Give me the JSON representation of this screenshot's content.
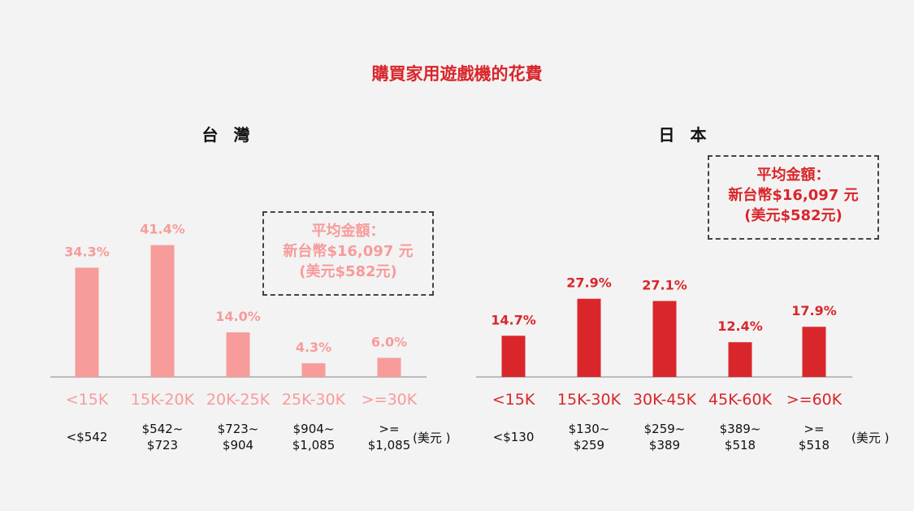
{
  "title": "購買家用遊戲機的花費",
  "usd_unit": "(美元 )",
  "colors": {
    "taiwan": "#f79b9b",
    "japan": "#d9262b",
    "title": "#d9262b"
  },
  "chart_data": [
    {
      "type": "bar",
      "title": "台 灣",
      "categories": [
        "<15K",
        "15K-20K",
        "20K-25K",
        "25K-30K",
        ">=30K"
      ],
      "values": [
        34.3,
        41.4,
        14.0,
        4.3,
        6.0
      ],
      "value_labels": [
        "34.3%",
        "41.4%",
        "14.0%",
        "4.3%",
        "6.0%"
      ],
      "usd_ranges": [
        [
          "<$542"
        ],
        [
          "$542~",
          "$723"
        ],
        [
          "$723~",
          "$904"
        ],
        [
          "$904~",
          "$1,085"
        ],
        [
          ">=",
          "$1,085"
        ]
      ],
      "average": [
        "平均金額：",
        "新台幣$16,097 元",
        "(美元$582元)"
      ],
      "unit": "%"
    },
    {
      "type": "bar",
      "title": "日 本",
      "categories": [
        "<15K",
        "15K-30K",
        "30K-45K",
        "45K-60K",
        ">=60K"
      ],
      "values": [
        14.7,
        27.9,
        27.1,
        12.4,
        17.9
      ],
      "value_labels": [
        "14.7%",
        "27.9%",
        "27.1%",
        "12.4%",
        "17.9%"
      ],
      "usd_ranges": [
        [
          "<$130"
        ],
        [
          "$130~",
          "$259"
        ],
        [
          "$259~",
          "$389"
        ],
        [
          "$389~",
          "$518"
        ],
        [
          ">=",
          "$518"
        ]
      ],
      "average": [
        "平均金額：",
        "新台幣$16,097 元",
        "(美元$582元)"
      ],
      "unit": "%"
    }
  ]
}
